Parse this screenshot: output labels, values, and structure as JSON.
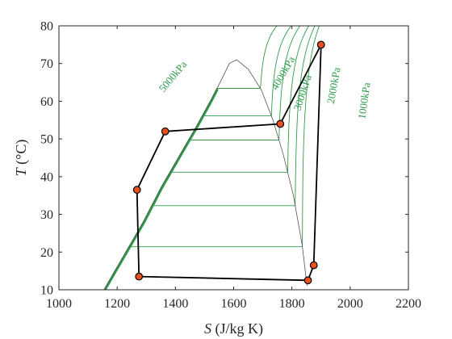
{
  "chart_data": {
    "type": "line",
    "title": "",
    "xlabel": {
      "symbol": "S",
      "unit": " (J/kg K)"
    },
    "ylabel": {
      "symbol": "T",
      "unit": " (°C)"
    },
    "xlim": [
      1000,
      2200
    ],
    "ylim": [
      10,
      80
    ],
    "xticks": [
      1000,
      1200,
      1400,
      1600,
      1800,
      2000,
      2200
    ],
    "yticks": [
      10,
      20,
      30,
      40,
      50,
      60,
      70,
      80
    ],
    "grid": false,
    "colors": {
      "isobar": "#2e9b4a",
      "dome": "#555555",
      "cycle": "#000000",
      "marker_fill": "#e8501c"
    },
    "saturation_dome": {
      "s": [
        1155,
        1230,
        1290,
        1350,
        1410,
        1470,
        1520,
        1560,
        1585,
        1610,
        1650,
        1695,
        1735,
        1770,
        1805,
        1835,
        1852
      ],
      "T": [
        10,
        20,
        28,
        37,
        45,
        53,
        60,
        66,
        70,
        71,
        68.5,
        63,
        55,
        46,
        35,
        22,
        11
      ]
    },
    "isobars": [
      {
        "label": "5000kPa",
        "T_sat": 63.4,
        "label_pos": [
          1400,
          66
        ],
        "label_angle": -50
      },
      {
        "label": "4000kPa",
        "T_sat": 56.1,
        "label_pos": [
          1780,
          67
        ],
        "label_angle": -60
      },
      {
        "label": "3000kPa",
        "T_sat": 49.7,
        "label_pos": [
          1848,
          62
        ],
        "label_angle": -72
      },
      {
        "label": "2000kPa",
        "T_sat": 41.2,
        "label_pos": [
          1955,
          64
        ],
        "label_angle": -80
      },
      {
        "label": "1000kPa",
        "T_sat": 32.3,
        "label_pos": [
          2060,
          60
        ],
        "label_angle": -82
      },
      {
        "label": "",
        "T_sat": 21.4,
        "label_pos": null,
        "label_angle": 0
      }
    ],
    "series": [
      {
        "type": "line",
        "x": [
          1275,
          1855,
          1875,
          1900,
          1760,
          1365,
          1268,
          1275
        ],
        "y": [
          13.5,
          12.5,
          16.5,
          75,
          54,
          52,
          36.5,
          13.5
        ]
      }
    ]
  }
}
